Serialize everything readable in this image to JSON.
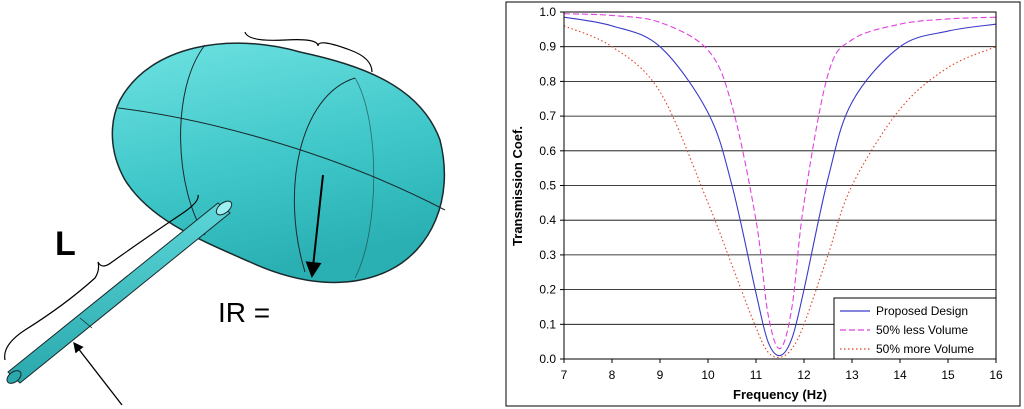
{
  "figure": {
    "label_length": "L",
    "label_radius": "IR ="
  },
  "colors": {
    "tank_fill": "#4fd2d4",
    "tank_outline": "#1a2a2c",
    "series_proposed": "#3a3ac8",
    "series_less": "#e040e0",
    "series_more": "#e04020",
    "grid": "#000000"
  },
  "chart_data": {
    "type": "line",
    "title": "",
    "xlabel": "Frequency (Hz)",
    "ylabel": "Transmission Coef.",
    "xlim": [
      7,
      16
    ],
    "ylim": [
      0.0,
      1.0
    ],
    "xticks": [
      "7",
      "8",
      "9",
      "10",
      "11",
      "12",
      "13",
      "14",
      "15",
      "16"
    ],
    "yticks": [
      "0.0",
      "0.1",
      "0.2",
      "0.3",
      "0.4",
      "0.5",
      "0.6",
      "0.7",
      "0.8",
      "0.9",
      "1.0"
    ],
    "grid": "horizontal",
    "legend_position": "bottom-right",
    "series": [
      {
        "name": "Proposed Design",
        "style": "solid",
        "color": "#3a3ac8",
        "x": [
          7,
          8,
          9,
          10,
          10.5,
          11,
          11.25,
          11.5,
          11.75,
          12,
          12.5,
          13,
          14,
          15,
          16
        ],
        "y": [
          0.985,
          0.96,
          0.9,
          0.71,
          0.5,
          0.19,
          0.05,
          0.01,
          0.06,
          0.2,
          0.52,
          0.74,
          0.9,
          0.945,
          0.965
        ]
      },
      {
        "name": "50% less Volume",
        "style": "dashed",
        "color": "#e040e0",
        "x": [
          7,
          8,
          9,
          10,
          10.5,
          11,
          11.25,
          11.5,
          11.75,
          12,
          12.5,
          13,
          14,
          15,
          16
        ],
        "y": [
          0.995,
          0.99,
          0.97,
          0.89,
          0.73,
          0.4,
          0.13,
          0.03,
          0.15,
          0.45,
          0.82,
          0.92,
          0.965,
          0.98,
          0.985
        ]
      },
      {
        "name": "50% more Volume",
        "style": "dotted",
        "color": "#e04020",
        "x": [
          7,
          8,
          9,
          10,
          10.5,
          11,
          11.25,
          11.5,
          11.75,
          12,
          12.5,
          13,
          14,
          15,
          16
        ],
        "y": [
          0.96,
          0.9,
          0.77,
          0.45,
          0.27,
          0.09,
          0.02,
          0.005,
          0.03,
          0.1,
          0.3,
          0.5,
          0.72,
          0.84,
          0.9
        ]
      }
    ]
  }
}
